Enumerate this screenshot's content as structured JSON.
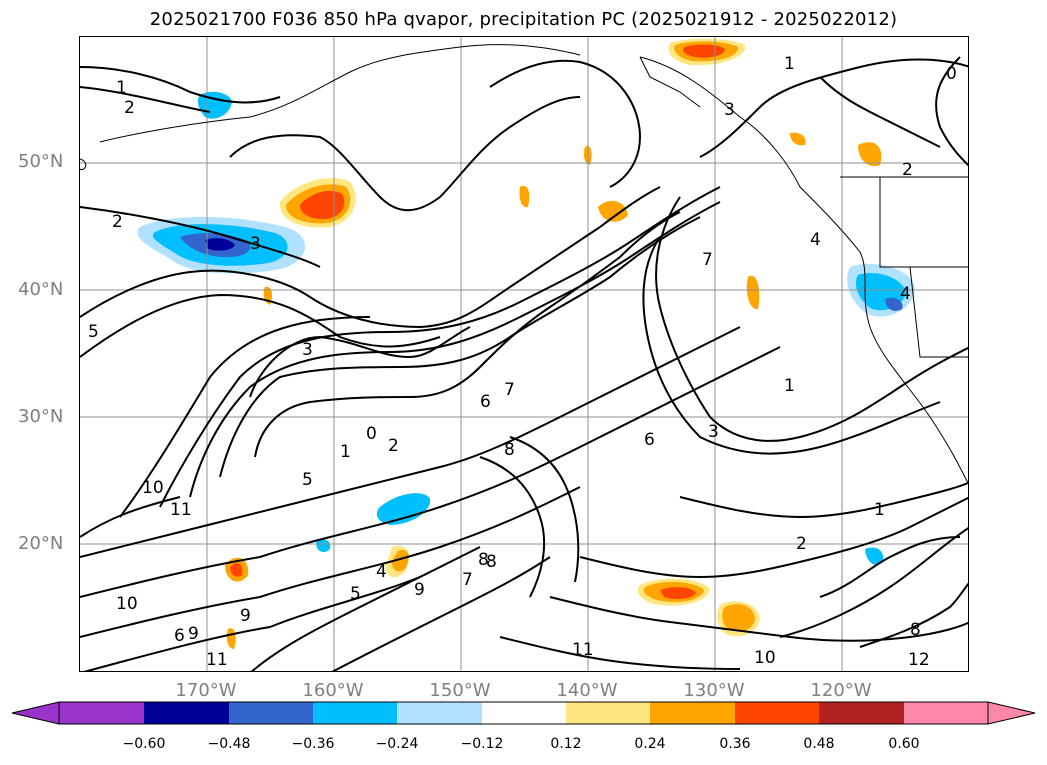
{
  "title": "2025021700 F036 850 hPa qvapor, precipitation PC (2025021912 - 2025022012)",
  "lat_labels": [
    "50°N",
    "40°N",
    "30°N",
    "20°N"
  ],
  "lon_labels": [
    "170°W",
    "160°W",
    "150°W",
    "140°W",
    "130°W",
    "120°W"
  ],
  "colorbar": {
    "ticks": [
      "−0.60",
      "−0.48",
      "−0.36",
      "−0.24",
      "−0.12",
      "0.12",
      "0.24",
      "0.36",
      "0.48",
      "0.60"
    ],
    "colors": [
      "#9933cc",
      "#000099",
      "#3366cc",
      "#00bfff",
      "#b0e2ff",
      "#ffffff",
      "#ffe680",
      "#ffa500",
      "#ff4500",
      "#b22222",
      "#ff88aa"
    ]
  },
  "contour_labels": [
    "1",
    "2",
    "2",
    "3",
    "5",
    "3",
    "0",
    "1",
    "2",
    "5",
    "10",
    "11",
    "6",
    "7",
    "8",
    "6",
    "3",
    "1",
    "2",
    "1",
    "11",
    "12",
    "8",
    "10",
    "9",
    "8",
    "7",
    "6",
    "5",
    "4",
    "11",
    "9",
    "10",
    "9",
    "4",
    "4",
    "1",
    "0",
    "2",
    "3",
    "7",
    "8"
  ]
}
